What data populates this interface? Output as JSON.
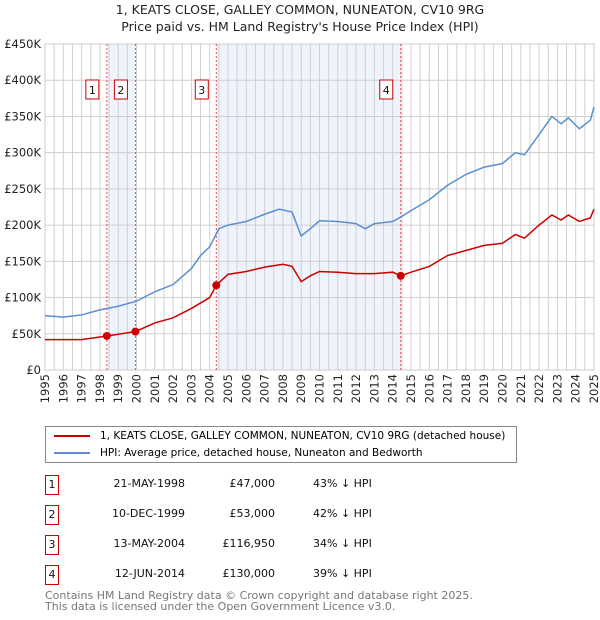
{
  "chart_data": {
    "type": "line",
    "title": "1, KEATS CLOSE, GALLEY COMMON, NUNEATON, CV10 9RG",
    "subtitle": "Price paid vs. HM Land Registry's House Price Index (HPI)",
    "xlim": [
      1995,
      2025
    ],
    "ylim": [
      0,
      450000
    ],
    "x_ticks": [
      "1995",
      "1996",
      "1997",
      "1998",
      "1999",
      "2000",
      "2001",
      "2002",
      "2003",
      "2004",
      "2005",
      "2006",
      "2007",
      "2008",
      "2009",
      "2010",
      "2011",
      "2012",
      "2013",
      "2014",
      "2015",
      "2016",
      "2017",
      "2018",
      "2019",
      "2020",
      "2021",
      "2022",
      "2023",
      "2024",
      "2025"
    ],
    "y_ticks": [
      {
        "v": 0,
        "l": "£0"
      },
      {
        "v": 50000,
        "l": "£50K"
      },
      {
        "v": 100000,
        "l": "£100K"
      },
      {
        "v": 150000,
        "l": "£150K"
      },
      {
        "v": 200000,
        "l": "£200K"
      },
      {
        "v": 250000,
        "l": "£250K"
      },
      {
        "v": 300000,
        "l": "£300K"
      },
      {
        "v": 350000,
        "l": "£350K"
      },
      {
        "v": 400000,
        "l": "£400K"
      },
      {
        "v": 450000,
        "l": "£450K"
      }
    ],
    "grid": true,
    "shaded_ranges": [
      [
        1998.38,
        1999.94
      ],
      [
        2004.36,
        2014.44
      ]
    ],
    "series": [
      {
        "name": "1, KEATS CLOSE, GALLEY COMMON, NUNEATON, CV10 9RG (detached house)",
        "color": "#cc0000",
        "x": [
          1995,
          1997,
          1998.38,
          1999.94,
          2001,
          2002,
          2003,
          2004,
          2004.36,
          2005,
          2006,
          2007,
          2008,
          2008.5,
          2009,
          2009.5,
          2010,
          2011,
          2012,
          2013,
          2014,
          2014.44,
          2015,
          2016,
          2017,
          2018,
          2019,
          2020,
          2020.7,
          2021.2,
          2022,
          2022.7,
          2023.2,
          2023.6,
          2024.2,
          2024.8,
          2025
        ],
        "y": [
          42000,
          42000,
          47000,
          53000,
          65000,
          72000,
          85000,
          100000,
          116950,
          132000,
          136000,
          142000,
          146000,
          143000,
          122000,
          130000,
          136000,
          135000,
          133000,
          133000,
          135000,
          130000,
          135000,
          143000,
          158000,
          165000,
          172000,
          175000,
          187000,
          182000,
          200000,
          214000,
          207000,
          214000,
          205000,
          210000,
          222000
        ]
      },
      {
        "name": "HPI: Average price, detached house, Nuneaton and Bedworth",
        "color": "#5b8fd0",
        "x": [
          1995,
          1996,
          1997,
          1998,
          1999,
          2000,
          2001,
          2002,
          2003,
          2003.5,
          2004,
          2004.5,
          2005,
          2006,
          2007,
          2007.8,
          2008.5,
          2009,
          2009.5,
          2010,
          2011,
          2012,
          2012.5,
          2013,
          2014,
          2014.5,
          2015,
          2016,
          2017,
          2018,
          2019,
          2020,
          2020.7,
          2021.2,
          2022,
          2022.7,
          2023.2,
          2023.6,
          2024.2,
          2024.8,
          2025
        ],
        "y": [
          75000,
          73000,
          76000,
          83000,
          88000,
          95000,
          108000,
          118000,
          140000,
          158000,
          170000,
          195000,
          200000,
          205000,
          215000,
          222000,
          218000,
          185000,
          195000,
          206000,
          205000,
          202000,
          195000,
          202000,
          205000,
          212000,
          220000,
          235000,
          255000,
          270000,
          280000,
          285000,
          300000,
          297000,
          325000,
          350000,
          340000,
          348000,
          333000,
          345000,
          363000
        ]
      }
    ],
    "sales": [
      {
        "n": "1",
        "x": 1998.38,
        "y": 47000,
        "date": "21-MAY-1998",
        "price": "£47,000",
        "rel": "43% ↓ HPI"
      },
      {
        "n": "2",
        "x": 1999.94,
        "y": 53000,
        "date": "10-DEC-1999",
        "price": "£53,000",
        "rel": "42% ↓ HPI"
      },
      {
        "n": "3",
        "x": 2004.36,
        "y": 116950,
        "date": "13-MAY-2004",
        "price": "£116,950",
        "rel": "34% ↓ HPI"
      },
      {
        "n": "4",
        "x": 2014.44,
        "y": 130000,
        "date": "12-JUN-2014",
        "price": "£130,000",
        "rel": "39% ↓ HPI"
      }
    ]
  },
  "footer": {
    "line1": "Contains HM Land Registry data © Crown copyright and database right 2025.",
    "line2": "This data is licensed under the Open Government Licence v3.0."
  }
}
